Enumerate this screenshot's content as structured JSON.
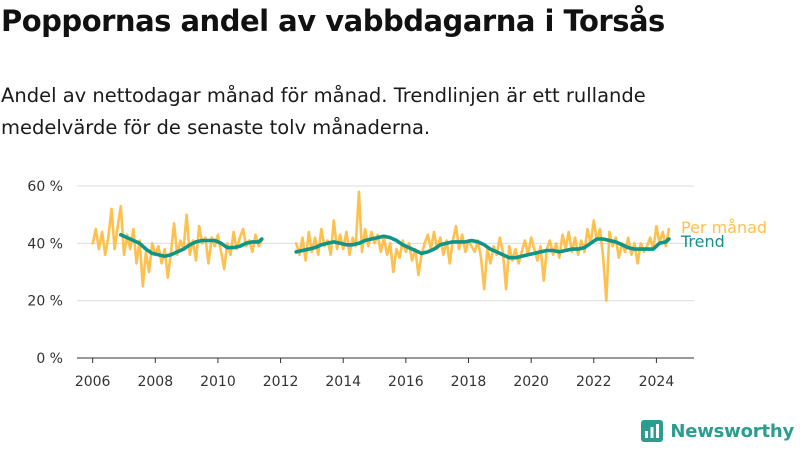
{
  "header": {
    "title": "Poppornas andel av vabbdagarna i Torsås",
    "subtitle": "Andel av nettodagar månad för månad. Trendlinjen är ett rullande medelvärde för de senaste tolv månaderna."
  },
  "brand": {
    "name": "Newsworthy",
    "icon": "newsworthy-logo-icon",
    "color": "#2a9d8f"
  },
  "chart_data": {
    "type": "line",
    "ylim": [
      0,
      60
    ],
    "xlim": [
      2005.5,
      2025.2
    ],
    "yticks": [
      {
        "value": 0,
        "label": "0 %"
      },
      {
        "value": 20,
        "label": "20 %"
      },
      {
        "value": 40,
        "label": "40 %"
      },
      {
        "value": 60,
        "label": "60 %"
      }
    ],
    "xticks": [
      {
        "value": 2006,
        "label": "2006"
      },
      {
        "value": 2008,
        "label": "2008"
      },
      {
        "value": 2010,
        "label": "2010"
      },
      {
        "value": 2012,
        "label": "2012"
      },
      {
        "value": 2014,
        "label": "2014"
      },
      {
        "value": 2016,
        "label": "2016"
      },
      {
        "value": 2018,
        "label": "2018"
      },
      {
        "value": 2020,
        "label": "2020"
      },
      {
        "value": 2022,
        "label": "2022"
      },
      {
        "value": 2024,
        "label": "2024"
      }
    ],
    "grid": true,
    "series": [
      {
        "name": "Per månad",
        "color": "#ffc04d",
        "segments": [
          [
            [
              2006.0,
              40
            ],
            [
              2006.1,
              45
            ],
            [
              2006.2,
              38
            ],
            [
              2006.3,
              44
            ],
            [
              2006.4,
              36
            ],
            [
              2006.5,
              42
            ],
            [
              2006.6,
              52
            ],
            [
              2006.7,
              38
            ],
            [
              2006.8,
              46
            ],
            [
              2006.9,
              53
            ],
            [
              2007.0,
              36
            ],
            [
              2007.1,
              43
            ],
            [
              2007.2,
              38
            ],
            [
              2007.3,
              45
            ],
            [
              2007.4,
              33
            ],
            [
              2007.5,
              41
            ],
            [
              2007.6,
              25
            ],
            [
              2007.7,
              37
            ],
            [
              2007.8,
              30
            ],
            [
              2007.9,
              40
            ],
            [
              2008.0,
              36
            ],
            [
              2008.1,
              39
            ],
            [
              2008.2,
              33
            ],
            [
              2008.3,
              38
            ],
            [
              2008.4,
              28
            ],
            [
              2008.5,
              37
            ],
            [
              2008.6,
              47
            ],
            [
              2008.7,
              36
            ],
            [
              2008.8,
              41
            ],
            [
              2008.9,
              38
            ],
            [
              2009.0,
              50
            ],
            [
              2009.1,
              36
            ],
            [
              2009.2,
              41
            ],
            [
              2009.3,
              34
            ],
            [
              2009.4,
              46
            ],
            [
              2009.5,
              40
            ],
            [
              2009.6,
              42
            ],
            [
              2009.7,
              33
            ],
            [
              2009.8,
              42
            ],
            [
              2009.9,
              39
            ],
            [
              2010.0,
              43
            ],
            [
              2010.1,
              37
            ],
            [
              2010.2,
              31
            ],
            [
              2010.3,
              40
            ],
            [
              2010.4,
              36
            ],
            [
              2010.5,
              44
            ],
            [
              2010.6,
              38
            ],
            [
              2010.7,
              42
            ],
            [
              2010.8,
              45
            ],
            [
              2010.9,
              39
            ],
            [
              2011.0,
              41
            ],
            [
              2011.1,
              37
            ],
            [
              2011.2,
              43
            ],
            [
              2011.3,
              39
            ],
            [
              2011.4,
              41
            ]
          ],
          [
            [
              2012.5,
              40
            ],
            [
              2012.6,
              36
            ],
            [
              2012.7,
              42
            ],
            [
              2012.8,
              34
            ],
            [
              2012.9,
              44
            ],
            [
              2013.0,
              37
            ],
            [
              2013.1,
              42
            ],
            [
              2013.2,
              36
            ],
            [
              2013.3,
              45
            ],
            [
              2013.4,
              39
            ],
            [
              2013.5,
              41
            ],
            [
              2013.6,
              36
            ],
            [
              2013.7,
              48
            ],
            [
              2013.8,
              38
            ],
            [
              2013.9,
              43
            ],
            [
              2014.0,
              38
            ],
            [
              2014.1,
              44
            ],
            [
              2014.2,
              36
            ],
            [
              2014.3,
              42
            ],
            [
              2014.4,
              39
            ],
            [
              2014.5,
              58
            ],
            [
              2014.6,
              37
            ],
            [
              2014.7,
              45
            ],
            [
              2014.8,
              39
            ],
            [
              2014.9,
              44
            ],
            [
              2015.0,
              40
            ],
            [
              2015.1,
              43
            ],
            [
              2015.2,
              37
            ],
            [
              2015.3,
              42
            ],
            [
              2015.4,
              36
            ],
            [
              2015.5,
              40
            ],
            [
              2015.6,
              30
            ],
            [
              2015.7,
              38
            ],
            [
              2015.8,
              35
            ],
            [
              2015.9,
              41
            ],
            [
              2016.0,
              37
            ],
            [
              2016.1,
              40
            ],
            [
              2016.2,
              34
            ],
            [
              2016.3,
              38
            ],
            [
              2016.4,
              29
            ],
            [
              2016.5,
              36
            ],
            [
              2016.6,
              40
            ],
            [
              2016.7,
              43
            ],
            [
              2016.8,
              38
            ],
            [
              2016.9,
              44
            ],
            [
              2017.0,
              38
            ],
            [
              2017.1,
              42
            ],
            [
              2017.2,
              36
            ],
            [
              2017.3,
              41
            ],
            [
              2017.4,
              33
            ],
            [
              2017.5,
              41
            ],
            [
              2017.6,
              46
            ],
            [
              2017.7,
              38
            ],
            [
              2017.8,
              43
            ],
            [
              2017.9,
              37
            ],
            [
              2018.0,
              41
            ],
            [
              2018.1,
              39
            ],
            [
              2018.2,
              37
            ],
            [
              2018.3,
              41
            ],
            [
              2018.4,
              35
            ],
            [
              2018.5,
              24
            ],
            [
              2018.6,
              38
            ],
            [
              2018.7,
              33
            ],
            [
              2018.8,
              39
            ],
            [
              2018.9,
              36
            ],
            [
              2019.0,
              42
            ],
            [
              2019.1,
              37
            ],
            [
              2019.2,
              24
            ],
            [
              2019.3,
              39
            ],
            [
              2019.4,
              34
            ],
            [
              2019.5,
              38
            ],
            [
              2019.6,
              33
            ],
            [
              2019.7,
              37
            ],
            [
              2019.8,
              41
            ],
            [
              2019.9,
              36
            ],
            [
              2020.0,
              42
            ],
            [
              2020.1,
              38
            ],
            [
              2020.2,
              34
            ],
            [
              2020.3,
              39
            ],
            [
              2020.4,
              27
            ],
            [
              2020.5,
              38
            ],
            [
              2020.6,
              41
            ],
            [
              2020.7,
              36
            ],
            [
              2020.8,
              40
            ],
            [
              2020.9,
              35
            ],
            [
              2021.0,
              43
            ],
            [
              2021.1,
              38
            ],
            [
              2021.2,
              44
            ],
            [
              2021.3,
              37
            ],
            [
              2021.4,
              42
            ],
            [
              2021.5,
              36
            ],
            [
              2021.6,
              41
            ],
            [
              2021.7,
              37
            ],
            [
              2021.8,
              45
            ],
            [
              2021.9,
              40
            ],
            [
              2022.0,
              48
            ],
            [
              2022.1,
              41
            ],
            [
              2022.2,
              45
            ],
            [
              2022.3,
              35
            ],
            [
              2022.4,
              20
            ],
            [
              2022.5,
              44
            ],
            [
              2022.6,
              39
            ],
            [
              2022.7,
              42
            ],
            [
              2022.8,
              35
            ],
            [
              2022.9,
              40
            ],
            [
              2023.0,
              37
            ],
            [
              2023.1,
              42
            ],
            [
              2023.2,
              36
            ],
            [
              2023.3,
              40
            ],
            [
              2023.4,
              33
            ],
            [
              2023.5,
              40
            ],
            [
              2023.6,
              37
            ],
            [
              2023.7,
              39
            ],
            [
              2023.8,
              42
            ],
            [
              2023.9,
              38
            ],
            [
              2024.0,
              46
            ],
            [
              2024.1,
              40
            ],
            [
              2024.2,
              44
            ],
            [
              2024.3,
              39
            ],
            [
              2024.4,
              45
            ]
          ]
        ]
      },
      {
        "name": "Trend",
        "color": "#0f9488",
        "segments": [
          [
            [
              2006.9,
              43
            ],
            [
              2007.1,
              42
            ],
            [
              2007.3,
              41
            ],
            [
              2007.5,
              40
            ],
            [
              2007.7,
              38
            ],
            [
              2007.9,
              36.5
            ],
            [
              2008.1,
              36
            ],
            [
              2008.3,
              35.5
            ],
            [
              2008.5,
              36
            ],
            [
              2008.7,
              37
            ],
            [
              2008.9,
              38
            ],
            [
              2009.1,
              39.5
            ],
            [
              2009.3,
              40.5
            ],
            [
              2009.5,
              41
            ],
            [
              2009.7,
              41
            ],
            [
              2009.9,
              41
            ],
            [
              2010.1,
              40
            ],
            [
              2010.3,
              38.5
            ],
            [
              2010.5,
              38.5
            ],
            [
              2010.7,
              39
            ],
            [
              2010.9,
              40
            ],
            [
              2011.1,
              40.5
            ],
            [
              2011.3,
              40.5
            ],
            [
              2011.4,
              41.5
            ]
          ],
          [
            [
              2012.5,
              37
            ],
            [
              2012.7,
              37.5
            ],
            [
              2012.9,
              38
            ],
            [
              2013.1,
              38.5
            ],
            [
              2013.3,
              39.5
            ],
            [
              2013.5,
              40
            ],
            [
              2013.7,
              40.5
            ],
            [
              2013.9,
              40
            ],
            [
              2014.1,
              39.5
            ],
            [
              2014.3,
              39.5
            ],
            [
              2014.5,
              40
            ],
            [
              2014.7,
              41
            ],
            [
              2014.9,
              41.5
            ],
            [
              2015.1,
              42
            ],
            [
              2015.3,
              42.5
            ],
            [
              2015.5,
              42
            ],
            [
              2015.7,
              41
            ],
            [
              2015.9,
              39.5
            ],
            [
              2016.1,
              38.5
            ],
            [
              2016.3,
              37.5
            ],
            [
              2016.5,
              36.5
            ],
            [
              2016.7,
              37
            ],
            [
              2016.9,
              38
            ],
            [
              2017.1,
              39.5
            ],
            [
              2017.3,
              40
            ],
            [
              2017.5,
              40.5
            ],
            [
              2017.7,
              40.5
            ],
            [
              2017.9,
              40.5
            ],
            [
              2018.1,
              41
            ],
            [
              2018.3,
              40.5
            ],
            [
              2018.5,
              39.5
            ],
            [
              2018.7,
              38
            ],
            [
              2018.9,
              37
            ],
            [
              2019.1,
              36
            ],
            [
              2019.3,
              35
            ],
            [
              2019.5,
              35
            ],
            [
              2019.7,
              35.5
            ],
            [
              2019.9,
              36
            ],
            [
              2020.1,
              36.5
            ],
            [
              2020.3,
              37
            ],
            [
              2020.5,
              37.5
            ],
            [
              2020.7,
              37.5
            ],
            [
              2020.9,
              37
            ],
            [
              2021.1,
              37.5
            ],
            [
              2021.3,
              38
            ],
            [
              2021.5,
              38
            ],
            [
              2021.7,
              38.5
            ],
            [
              2021.9,
              40
            ],
            [
              2022.1,
              41.5
            ],
            [
              2022.3,
              41.5
            ],
            [
              2022.5,
              41
            ],
            [
              2022.7,
              40.5
            ],
            [
              2022.9,
              39.5
            ],
            [
              2023.1,
              38.5
            ],
            [
              2023.3,
              38
            ],
            [
              2023.5,
              38
            ],
            [
              2023.7,
              38
            ],
            [
              2023.9,
              38
            ],
            [
              2024.1,
              40
            ],
            [
              2024.3,
              40.5
            ],
            [
              2024.4,
              41.5
            ]
          ]
        ]
      }
    ]
  }
}
